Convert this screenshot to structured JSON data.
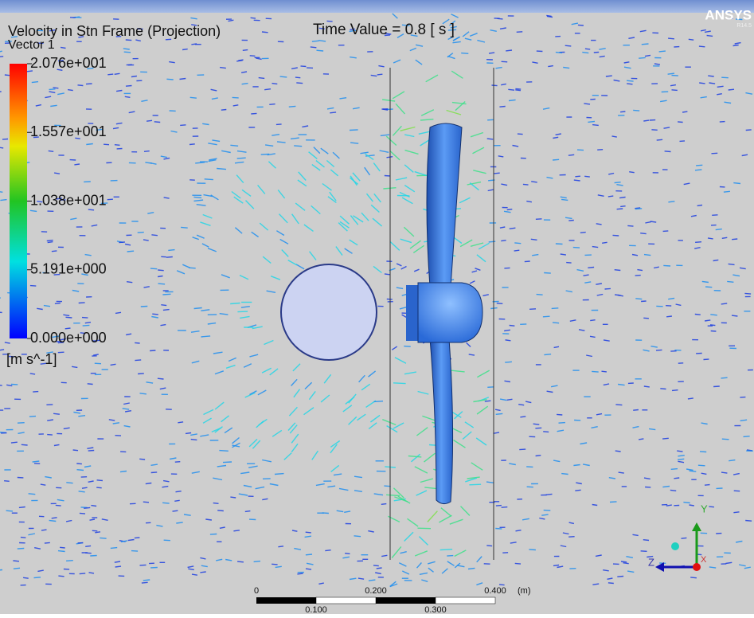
{
  "header": {
    "brand": "ANSYS",
    "version": "R14.5",
    "time": "Time Value = 0.8 [ s ]"
  },
  "legend": {
    "title": "Velocity in Stn Frame (Projection)",
    "subtitle": "Vector 1",
    "labels": [
      "2.076e+001",
      "1.557e+001",
      "1.038e+001",
      "5.191e+000",
      "0.000e+000"
    ],
    "units": "[m s^-1]"
  },
  "scale_bar": {
    "top_labels": [
      "0",
      "0.200",
      "0.400"
    ],
    "unit": "(m)",
    "bottom_labels": [
      "0.100",
      "0.300"
    ]
  },
  "triad": {
    "y": "Y",
    "z": "Z",
    "x": "X"
  }
}
